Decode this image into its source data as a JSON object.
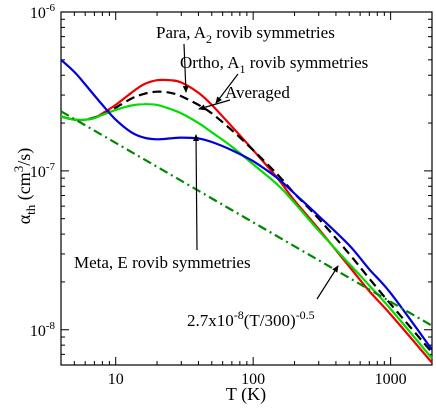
{
  "chart_data": {
    "type": "line",
    "x_scale": "log",
    "y_scale": "log",
    "xlim": [
      4,
      2000
    ],
    "ylim": [
      6e-09,
      1e-06
    ],
    "x_ticks": [
      10,
      100,
      1000
    ],
    "x_tick_labels": [
      "10",
      "100",
      "1000"
    ],
    "y_ticks": [
      1e-08,
      1e-07,
      1e-06
    ],
    "y_tick_labels": [
      {
        "base": "10",
        "exp": "-8"
      },
      {
        "base": "10",
        "exp": "-7"
      },
      {
        "base": "10",
        "exp": "-6"
      }
    ],
    "xlabel": "T (K)",
    "ylabel": {
      "main": "α",
      "sub": "th",
      "mid": " (cm",
      "sup": "3",
      "end": "/s)"
    },
    "grid": false,
    "series": [
      {
        "color": "#ee0000",
        "dash": "solid",
        "x": [
          4,
          5,
          6,
          7,
          8,
          10,
          13,
          16,
          20,
          25,
          30,
          40,
          50,
          70,
          100,
          150,
          200,
          300,
          500,
          700,
          1000,
          2000
        ],
        "y": [
          2.2e-07,
          2.1e-07,
          2.1e-07,
          2.15e-07,
          2.3e-07,
          2.6e-07,
          3.1e-07,
          3.5e-07,
          3.72e-07,
          3.72e-07,
          3.6e-07,
          3.1e-07,
          2.6e-07,
          1.9e-07,
          1.35e-07,
          9e-08,
          6.5e-08,
          4.3e-08,
          2.5e-08,
          1.75e-08,
          1.25e-08,
          6.2e-09
        ]
      },
      {
        "color": "#000000",
        "dash": "dashed",
        "x": [
          4,
          5,
          6,
          8,
          10,
          13,
          16,
          20,
          25,
          30,
          40,
          50,
          70,
          100,
          150,
          200,
          300,
          500,
          700,
          1000,
          2000
        ],
        "y": [
          2.2e-07,
          2.1e-07,
          2.1e-07,
          2.25e-07,
          2.5e-07,
          2.85e-07,
          3.05e-07,
          3.15e-07,
          3.1e-07,
          2.95e-07,
          2.6e-07,
          2.3e-07,
          1.8e-07,
          1.35e-07,
          9.5e-08,
          7.2e-08,
          5e-08,
          3e-08,
          2.1e-08,
          1.45e-08,
          7.2e-09
        ]
      },
      {
        "color": "#00dd00",
        "dash": "solid",
        "x": [
          4,
          5,
          6,
          7,
          8,
          10,
          13,
          16,
          20,
          25,
          30,
          40,
          50,
          70,
          100,
          150,
          200,
          300,
          500,
          700,
          1000,
          2000
        ],
        "y": [
          2.2e-07,
          2.1e-07,
          2.1e-07,
          2.15e-07,
          2.25e-07,
          2.42e-07,
          2.58e-07,
          2.63e-07,
          2.6e-07,
          2.45e-07,
          2.3e-07,
          2e-07,
          1.75e-07,
          1.42e-07,
          1.1e-07,
          8.2e-08,
          6.3e-08,
          4.2e-08,
          2.6e-08,
          1.9e-08,
          1.35e-08,
          6.6e-09
        ]
      },
      {
        "color": "#0000dd",
        "dash": "solid",
        "x": [
          4,
          5,
          6,
          8,
          10,
          13,
          16,
          20,
          25,
          30,
          40,
          50,
          70,
          100,
          150,
          200,
          300,
          500,
          700,
          1000,
          2000
        ],
        "y": [
          5e-07,
          4.2e-07,
          3.5e-07,
          2.6e-07,
          2.1e-07,
          1.75e-07,
          1.62e-07,
          1.58e-07,
          1.6e-07,
          1.62e-07,
          1.6e-07,
          1.52e-07,
          1.35e-07,
          1.15e-07,
          9e-08,
          7.2e-08,
          5.2e-08,
          3.4e-08,
          2.4e-08,
          1.7e-08,
          7.5e-09
        ]
      },
      {
        "color": "#008800",
        "dash": "dashdot",
        "x": [
          4,
          2000
        ],
        "y": [
          2.37e-07,
          1.06e-08
        ]
      }
    ],
    "annotations": [
      {
        "text": {
          "a": "Para, A",
          "sub": "2",
          "b": " rovib symmetries"
        }
      },
      {
        "text": {
          "a": "Ortho, A",
          "sub": "1",
          "b": " rovib symmetries"
        }
      },
      {
        "text": {
          "a": "Averaged"
        }
      },
      {
        "text": {
          "a": "Meta, E rovib symmetries"
        }
      },
      {
        "text": {
          "a": "2.7x10",
          "sup": "-8",
          "b": "(T/300)",
          "sup2": "-0.5"
        }
      }
    ]
  }
}
